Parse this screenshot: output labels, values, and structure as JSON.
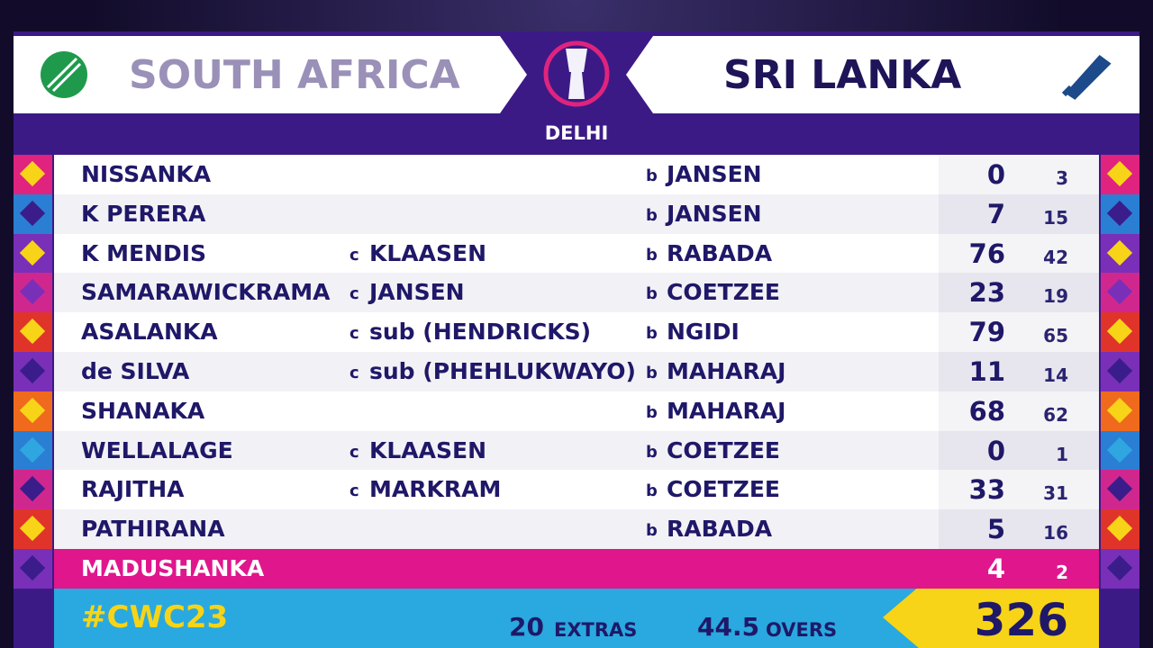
{
  "header": {
    "team_left": "SOUTH AFRICA",
    "team_right": "SRI LANKA",
    "venue": "DELHI"
  },
  "labels": {
    "caught": "c",
    "bowled": "b",
    "extras": "EXTRAS",
    "overs": "OVERS"
  },
  "table": {
    "rows": [
      {
        "batter": "NISSANKA",
        "fielder": null,
        "bowler": "JANSEN",
        "runs": 0,
        "balls": 3
      },
      {
        "batter": "K PERERA",
        "fielder": null,
        "bowler": "JANSEN",
        "runs": 7,
        "balls": 15
      },
      {
        "batter": "K MENDIS",
        "fielder": "KLAASEN",
        "bowler": "RABADA",
        "runs": 76,
        "balls": 42
      },
      {
        "batter": "SAMARAWICKRAMA",
        "fielder": "JANSEN",
        "bowler": "COETZEE",
        "runs": 23,
        "balls": 19
      },
      {
        "batter": "ASALANKA",
        "fielder": "sub (HENDRICKS)",
        "bowler": "NGIDI",
        "runs": 79,
        "balls": 65
      },
      {
        "batter": "de SILVA",
        "fielder": "sub (PHEHLUKWAYO)",
        "bowler": "MAHARAJ",
        "runs": 11,
        "balls": 14
      },
      {
        "batter": "SHANAKA",
        "fielder": null,
        "bowler": "MAHARAJ",
        "runs": 68,
        "balls": 62
      },
      {
        "batter": "WELLALAGE",
        "fielder": "KLAASEN",
        "bowler": "COETZEE",
        "runs": 0,
        "balls": 1
      },
      {
        "batter": "RAJITHA",
        "fielder": "MARKRAM",
        "bowler": "COETZEE",
        "runs": 33,
        "balls": 31
      },
      {
        "batter": "PATHIRANA",
        "fielder": null,
        "bowler": "RABADA",
        "runs": 5,
        "balls": 16
      },
      {
        "batter": "MADUSHANKA",
        "fielder": null,
        "bowler": null,
        "runs": 4,
        "balls": 2
      }
    ]
  },
  "footer": {
    "hashtag": "#CWC23",
    "extras": 20,
    "overs": 44.5,
    "total": 326
  }
}
